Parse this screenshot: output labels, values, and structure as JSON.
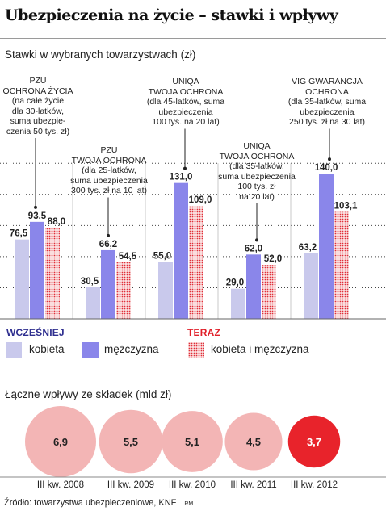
{
  "title": "Ubezpieczenia na życie – stawki i wpływy",
  "chart_data": [
    {
      "type": "bar",
      "title": "Stawki w wybranych towarzystwach (zł)",
      "categories": [
        "PZU\nOCHRONA ŻYCIA\n(na całe życie\ndla 30-latków,\nsuma ubezpie-\nczenia 50 tys. zł)",
        "PZU\nTWOJA OCHRONA\n(dla 25-latków,\nsuma ubezpieczenia\n300 tys. zł na 10 lat)",
        "UNIQA\nTWOJA OCHRONA\n(dla 45-latków, suma\nubezpieczenia\n100 tys. na 20 lat)",
        "UNIQA\nTWOJA OCHRONA\n(dla 35-latków,\nsuma ubezpieczenia\n100 tys. zł\nna 20 lat)",
        "VIG GWARANCJA\nOCHRONA\n(dla 35-latków, suma\nubezpieczenia\n250 tys. zł na 30 lat)"
      ],
      "groups": [
        {
          "name": "WCZEŚNIEJ",
          "color": "#2e2e8f"
        },
        {
          "name": "TERAZ",
          "color": "#e0202a"
        }
      ],
      "series": [
        {
          "name": "kobieta",
          "group": "WCZEŚNIEJ",
          "color": "#c9c9ec",
          "values": [
            76.5,
            30.5,
            55.0,
            29.0,
            63.2
          ],
          "labels": [
            "76,5",
            "30,5",
            "55,0",
            "29,0",
            "63,2"
          ]
        },
        {
          "name": "mężczyzna",
          "group": "WCZEŚNIEJ",
          "color": "#8a86ea",
          "values": [
            93.5,
            66.2,
            131.0,
            62.0,
            140.0
          ],
          "labels": [
            "93,5",
            "66,2",
            "131,0",
            "62,0",
            "140,0"
          ]
        },
        {
          "name": "kobieta i mężczyzna",
          "group": "TERAZ",
          "color": "#ec8a8a",
          "pattern": "dotted",
          "values": [
            88.0,
            54.5,
            109.0,
            52.0,
            103.1
          ],
          "labels": [
            "88,0",
            "54,5",
            "109,0",
            "52,0",
            "103,1"
          ]
        }
      ],
      "ylim": [
        0,
        165
      ],
      "grid": "dotted horizontal"
    },
    {
      "type": "bubble",
      "title": "Łączne wpływy ze składek (mld zł)",
      "categories": [
        "III kw. 2008",
        "III kw. 2009",
        "III kw. 2010",
        "III kw. 2011",
        "III kw. 2012"
      ],
      "values": [
        6.9,
        5.5,
        5.1,
        4.5,
        3.7
      ],
      "labels": [
        "6,9",
        "5,5",
        "5,1",
        "4,5",
        "3,7"
      ],
      "colors": [
        "#f3b5b5",
        "#f3b5b5",
        "#f3b5b5",
        "#f3b5b5",
        "#e8232b"
      ],
      "label_colors": [
        "#222222",
        "#222222",
        "#222222",
        "#222222",
        "#ffffff"
      ]
    }
  ],
  "source": "Źródło: towarzystwa ubezpieczeniowe, KNF",
  "credit": "RM"
}
